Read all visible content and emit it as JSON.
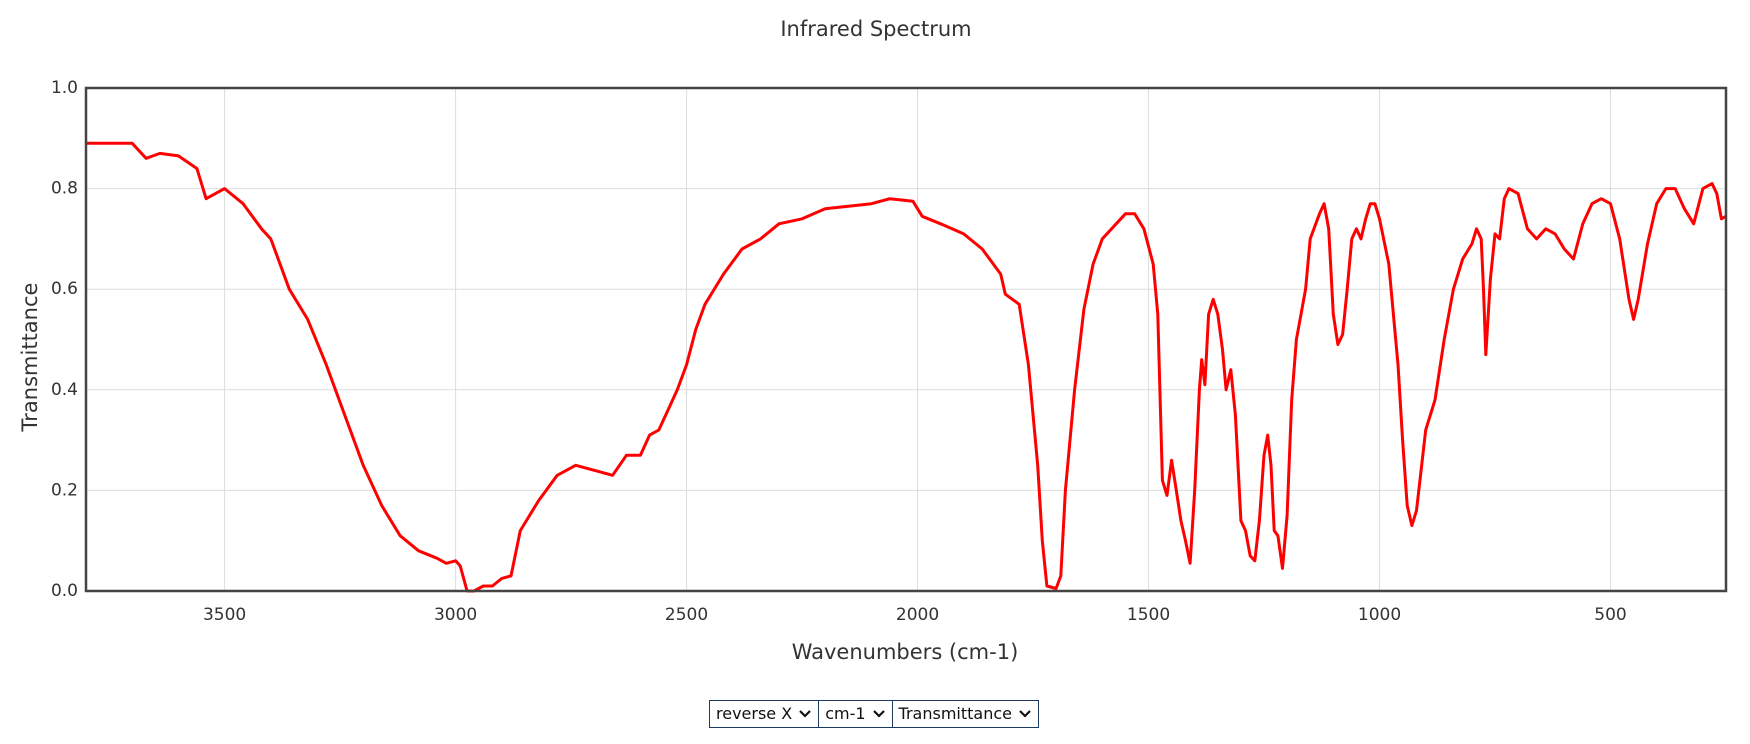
{
  "chart_data": {
    "type": "line",
    "title": "Infrared Spectrum",
    "x_label": "Wavenumbers (cm-1)",
    "y_label": "Transmittance",
    "xlim": [
      3800,
      250
    ],
    "ylim": [
      0,
      1
    ],
    "xticks": [
      3500,
      3000,
      2500,
      2000,
      1500,
      1000,
      500
    ],
    "yticks": [
      {
        "value": 0,
        "label": "0.0"
      },
      0.2,
      0.4,
      0.6,
      0.8,
      {
        "value": 1,
        "label": "1.0"
      }
    ],
    "grid": true,
    "series": [
      {
        "color": "#ff0000",
        "x": [
          3800,
          3750,
          3700,
          3670,
          3640,
          3600,
          3560,
          3540,
          3500,
          3460,
          3420,
          3400,
          3360,
          3320,
          3280,
          3240,
          3200,
          3160,
          3120,
          3080,
          3040,
          3020,
          3000,
          2990,
          2975,
          2960,
          2940,
          2920,
          2900,
          2880,
          2860,
          2820,
          2780,
          2740,
          2700,
          2660,
          2630,
          2600,
          2580,
          2560,
          2540,
          2520,
          2500,
          2480,
          2460,
          2420,
          2380,
          2340,
          2300,
          2250,
          2200,
          2150,
          2100,
          2060,
          2010,
          1990,
          1950,
          1900,
          1860,
          1820,
          1810,
          1780,
          1760,
          1740,
          1730,
          1720,
          1700,
          1690,
          1680,
          1660,
          1640,
          1620,
          1600,
          1570,
          1550,
          1530,
          1510,
          1490,
          1480,
          1470,
          1460,
          1450,
          1440,
          1430,
          1420,
          1410,
          1400,
          1390,
          1385,
          1378,
          1370,
          1360,
          1350,
          1340,
          1332,
          1322,
          1312,
          1300,
          1290,
          1280,
          1270,
          1260,
          1250,
          1242,
          1235,
          1228,
          1220,
          1210,
          1200,
          1190,
          1180,
          1160,
          1150,
          1130,
          1120,
          1110,
          1100,
          1090,
          1080,
          1070,
          1060,
          1050,
          1040,
          1030,
          1020,
          1010,
          1000,
          980,
          960,
          950,
          940,
          930,
          920,
          910,
          900,
          880,
          860,
          840,
          820,
          800,
          790,
          780,
          775,
          770,
          760,
          750,
          740,
          730,
          720,
          700,
          680,
          660,
          640,
          620,
          600,
          580,
          560,
          540,
          520,
          500,
          480,
          460,
          450,
          440,
          420,
          400,
          380,
          360,
          340,
          320,
          300,
          280,
          270,
          260,
          250
        ],
        "values": [
          0.89,
          0.89,
          0.89,
          0.86,
          0.87,
          0.865,
          0.84,
          0.78,
          0.8,
          0.77,
          0.72,
          0.7,
          0.6,
          0.54,
          0.45,
          0.35,
          0.25,
          0.17,
          0.11,
          0.08,
          0.065,
          0.055,
          0.06,
          0.05,
          0.0,
          0.0,
          0.01,
          0.01,
          0.025,
          0.03,
          0.12,
          0.18,
          0.23,
          0.25,
          0.24,
          0.23,
          0.27,
          0.27,
          0.31,
          0.32,
          0.36,
          0.4,
          0.45,
          0.52,
          0.57,
          0.63,
          0.68,
          0.7,
          0.73,
          0.74,
          0.76,
          0.765,
          0.77,
          0.78,
          0.775,
          0.745,
          0.73,
          0.71,
          0.68,
          0.63,
          0.59,
          0.57,
          0.45,
          0.25,
          0.1,
          0.01,
          0.005,
          0.03,
          0.2,
          0.4,
          0.56,
          0.65,
          0.7,
          0.73,
          0.75,
          0.75,
          0.72,
          0.65,
          0.55,
          0.22,
          0.19,
          0.26,
          0.2,
          0.14,
          0.1,
          0.055,
          0.2,
          0.4,
          0.46,
          0.41,
          0.55,
          0.58,
          0.55,
          0.48,
          0.4,
          0.44,
          0.35,
          0.14,
          0.12,
          0.07,
          0.06,
          0.14,
          0.27,
          0.31,
          0.25,
          0.12,
          0.11,
          0.045,
          0.15,
          0.38,
          0.5,
          0.6,
          0.7,
          0.75,
          0.77,
          0.72,
          0.55,
          0.49,
          0.51,
          0.6,
          0.7,
          0.72,
          0.7,
          0.74,
          0.77,
          0.77,
          0.74,
          0.65,
          0.45,
          0.3,
          0.17,
          0.13,
          0.16,
          0.24,
          0.32,
          0.38,
          0.5,
          0.6,
          0.66,
          0.69,
          0.72,
          0.7,
          0.6,
          0.47,
          0.62,
          0.71,
          0.7,
          0.78,
          0.8,
          0.79,
          0.72,
          0.7,
          0.72,
          0.71,
          0.68,
          0.66,
          0.73,
          0.77,
          0.78,
          0.77,
          0.7,
          0.58,
          0.54,
          0.58,
          0.69,
          0.77,
          0.8,
          0.8,
          0.76,
          0.73,
          0.8,
          0.81,
          0.79,
          0.74,
          0.745
        ]
      }
    ]
  },
  "controls": [
    "reverse X",
    "cm-1",
    "Transmittance"
  ]
}
